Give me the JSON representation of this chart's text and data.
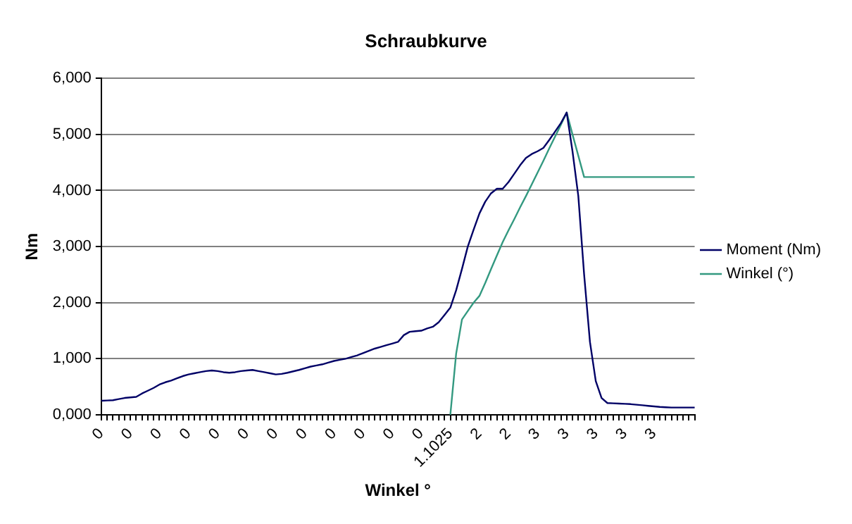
{
  "chart_data": {
    "type": "line",
    "title": "Schraubkurve",
    "xlabel": "Winkel °",
    "ylabel": "Nm",
    "categories": [
      "0",
      null,
      null,
      null,
      null,
      "0",
      null,
      null,
      null,
      null,
      "0",
      null,
      null,
      null,
      null,
      "0",
      null,
      null,
      null,
      null,
      "0",
      null,
      null,
      null,
      null,
      "0",
      null,
      null,
      null,
      null,
      "0",
      null,
      null,
      null,
      null,
      "0",
      null,
      null,
      null,
      null,
      "0",
      null,
      null,
      null,
      null,
      "0",
      null,
      null,
      null,
      null,
      "0",
      null,
      null,
      null,
      null,
      "0",
      null,
      null,
      null,
      null,
      "1.1025",
      null,
      null,
      null,
      null,
      "2",
      null,
      null,
      null,
      null,
      "2",
      null,
      null,
      null,
      null,
      "3",
      null,
      null,
      null,
      null,
      "3",
      null,
      null,
      null,
      null,
      "3",
      null,
      null,
      null,
      null,
      "3",
      null,
      null,
      null,
      null,
      "3",
      null,
      null,
      null,
      null,
      null,
      null,
      null
    ],
    "series": [
      {
        "name": "Moment (Nm)",
        "color": "#000066",
        "values": [
          250,
          255,
          260,
          280,
          300,
          310,
          320,
          380,
          430,
          480,
          540,
          580,
          610,
          650,
          690,
          720,
          740,
          760,
          780,
          790,
          780,
          760,
          750,
          760,
          780,
          790,
          800,
          780,
          760,
          740,
          720,
          730,
          750,
          775,
          800,
          830,
          860,
          880,
          900,
          930,
          960,
          980,
          1000,
          1030,
          1060,
          1100,
          1140,
          1180,
          1210,
          1240,
          1270,
          1300,
          1420,
          1480,
          1490,
          1500,
          1540,
          1570,
          1650,
          1780,
          1910,
          2220,
          2600,
          3000,
          3300,
          3590,
          3800,
          3950,
          4030,
          4030,
          4150,
          4300,
          4450,
          4580,
          4650,
          4700,
          4760,
          4900,
          5050,
          5200,
          5390,
          4700,
          3900,
          2500,
          1300,
          600,
          300,
          210,
          205,
          200,
          195,
          190,
          180,
          170,
          160,
          150,
          140,
          135,
          130,
          130,
          130,
          130,
          130
        ]
      },
      {
        "name": "Winkel (°)",
        "color": "#339980",
        "values": [
          null,
          null,
          null,
          null,
          null,
          null,
          null,
          null,
          null,
          null,
          null,
          null,
          null,
          null,
          null,
          null,
          null,
          null,
          null,
          null,
          null,
          null,
          null,
          null,
          null,
          null,
          null,
          null,
          null,
          null,
          null,
          null,
          null,
          null,
          null,
          null,
          null,
          null,
          null,
          null,
          null,
          null,
          null,
          null,
          null,
          null,
          null,
          null,
          null,
          null,
          null,
          null,
          null,
          null,
          null,
          null,
          null,
          null,
          null,
          null,
          0,
          1090,
          1700,
          1850,
          2000,
          2120,
          2350,
          2600,
          2840,
          3080,
          3290,
          3490,
          3700,
          3900,
          4110,
          4320,
          4530,
          4750,
          4960,
          5170,
          5390,
          5000,
          4620,
          4240,
          4240,
          4240,
          4240,
          4240,
          4240,
          4240,
          4240,
          4240,
          4240,
          4240,
          4240,
          4240,
          4240,
          4240,
          4240,
          4240,
          4240,
          4240,
          4240
        ]
      }
    ],
    "ylim": [
      0,
      6000
    ],
    "yticks": [
      {
        "value": 0,
        "label": "0,000"
      },
      {
        "value": 1000,
        "label": "1,000"
      },
      {
        "value": 2000,
        "label": "2,000"
      },
      {
        "value": 3000,
        "label": "3,000"
      },
      {
        "value": 4000,
        "label": "4,000"
      },
      {
        "value": 5000,
        "label": "5,000"
      },
      {
        "value": 6000,
        "label": "6,000"
      }
    ],
    "grid": "y",
    "legend": "right",
    "marker": "none",
    "line_style": "solid"
  }
}
